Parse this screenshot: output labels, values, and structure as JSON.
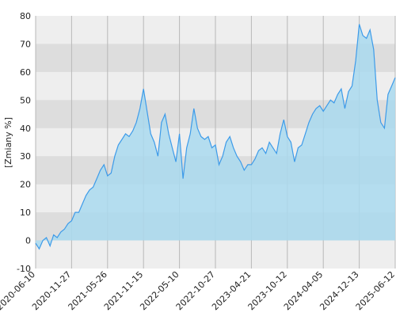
{
  "chart_data": {
    "type": "area",
    "y_label": "[Zmiany %]",
    "categories": [
      "2020-06-10",
      null,
      null,
      null,
      null,
      null,
      null,
      null,
      null,
      null,
      "2020-11-27",
      null,
      null,
      null,
      null,
      null,
      null,
      null,
      null,
      null,
      "2021-05-26",
      null,
      null,
      null,
      null,
      null,
      null,
      null,
      null,
      null,
      "2021-11-15",
      null,
      null,
      null,
      null,
      null,
      null,
      null,
      null,
      null,
      "2022-05-10",
      null,
      null,
      null,
      null,
      null,
      null,
      null,
      null,
      null,
      "2022-10-27",
      null,
      null,
      null,
      null,
      null,
      null,
      null,
      null,
      null,
      "2023-04-21",
      null,
      null,
      null,
      null,
      null,
      null,
      null,
      null,
      null,
      "2023-10-12",
      null,
      null,
      null,
      null,
      null,
      null,
      null,
      null,
      null,
      "2024-04-05",
      null,
      null,
      null,
      null,
      null,
      null,
      null,
      null,
      null,
      "2024-12-13",
      null,
      null,
      null,
      null,
      null,
      null,
      null,
      null,
      null,
      "2025-06-12"
    ],
    "values": [
      -1,
      -3,
      0,
      1,
      -2,
      2,
      1,
      3,
      4,
      6,
      7,
      10,
      10,
      13,
      16,
      18,
      19,
      22,
      25,
      27,
      23,
      24,
      30,
      34,
      36,
      38,
      37,
      39,
      42,
      47,
      54,
      46,
      38,
      35,
      30,
      42,
      45,
      38,
      33,
      28,
      38,
      22,
      33,
      38,
      47,
      40,
      37,
      36,
      37,
      33,
      34,
      27,
      30,
      35,
      37,
      33,
      30,
      28,
      25,
      27,
      27,
      29,
      32,
      33,
      31,
      35,
      33,
      31,
      38,
      43,
      37,
      35,
      28,
      33,
      34,
      38,
      42,
      45,
      47,
      48,
      46,
      48,
      50,
      49,
      52,
      54,
      47,
      53,
      55,
      64,
      77,
      73,
      72,
      75,
      68,
      50,
      42,
      40,
      52,
      55,
      58
    ],
    "color": "#3d9be9",
    "fill": "#a9d9ee",
    "ylim": [
      -10,
      80
    ],
    "yticks": [
      -10,
      0,
      10,
      20,
      30,
      40,
      50,
      60,
      70,
      80
    ],
    "grid": true
  }
}
